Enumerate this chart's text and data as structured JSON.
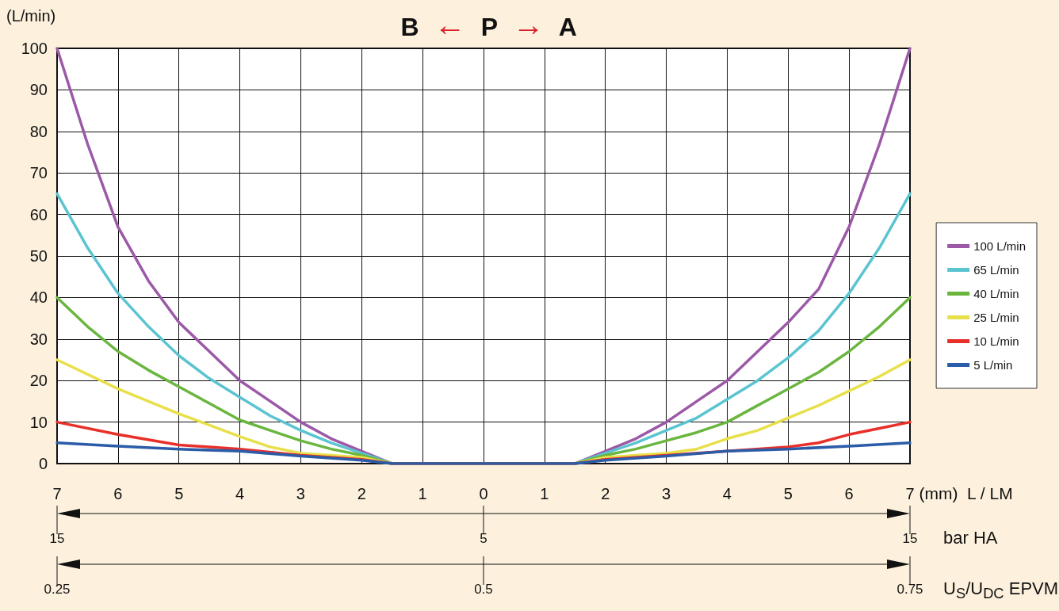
{
  "chart_data": {
    "type": "line",
    "title": "B ← P → A",
    "xlabel": "(mm)  L / LM",
    "ylabel": "(L/min)",
    "xlim": [
      -7,
      7
    ],
    "xticks": [
      {
        "value": -7,
        "label": "7"
      },
      {
        "value": -6,
        "label": "6"
      },
      {
        "value": -5,
        "label": "5"
      },
      {
        "value": -4,
        "label": "4"
      },
      {
        "value": -3,
        "label": "3"
      },
      {
        "value": -2,
        "label": "2"
      },
      {
        "value": -1,
        "label": "1"
      },
      0,
      1,
      2,
      3,
      4,
      5,
      6,
      7
    ],
    "ylim": [
      0,
      100
    ],
    "yticks": [
      0,
      10,
      20,
      30,
      40,
      50,
      60,
      70,
      80,
      90,
      100
    ],
    "grid": true,
    "legend": "right",
    "marker": "none",
    "line_style": "solid",
    "series": [
      {
        "name": "100 L/min",
        "color": "#9b59a8",
        "x": [
          -7,
          -6.5,
          -6,
          -5.5,
          -5,
          -4.5,
          -4,
          -3.5,
          -3,
          -2.5,
          -2,
          -1.5,
          1.5,
          2,
          2.5,
          3,
          3.5,
          4,
          4.5,
          5,
          5.5,
          6,
          6.5,
          7
        ],
        "values": [
          100,
          77,
          57,
          44,
          34,
          27,
          20,
          15,
          10,
          6,
          3,
          0,
          0,
          3,
          6,
          10,
          15,
          20,
          27,
          34,
          42,
          57,
          77,
          100
        ]
      },
      {
        "name": "65 L/min",
        "color": "#5bc4d1",
        "x": [
          -7,
          -6.5,
          -6,
          -5.5,
          -5,
          -4.5,
          -4,
          -3.5,
          -3,
          -2.5,
          -2,
          -1.5,
          1.5,
          2,
          2.5,
          3,
          3.5,
          4,
          4.5,
          5,
          5.5,
          6,
          6.5,
          7
        ],
        "values": [
          65,
          52,
          41,
          33,
          26,
          20.5,
          16,
          11.5,
          8,
          5,
          2.5,
          0,
          0,
          2.5,
          5,
          8,
          11,
          15.5,
          20,
          25.5,
          32,
          41,
          52,
          65
        ]
      },
      {
        "name": "40 L/min",
        "color": "#6ab63f",
        "x": [
          -7,
          -6.5,
          -6,
          -5.5,
          -5,
          -4.5,
          -4,
          -3.5,
          -3,
          -2.5,
          -2,
          -1.5,
          1.5,
          2,
          2.5,
          3,
          3.5,
          4,
          4.5,
          5,
          5.5,
          6,
          6.5,
          7
        ],
        "values": [
          40,
          33,
          27,
          22.5,
          18.5,
          14.5,
          10.5,
          8,
          5.5,
          3.5,
          2,
          0,
          0,
          2,
          3.5,
          5.5,
          7.5,
          10,
          14,
          18,
          22,
          27,
          33,
          40
        ]
      },
      {
        "name": "25 L/min",
        "color": "#e8e04a",
        "x": [
          -7,
          -6,
          -5,
          -4,
          -3.5,
          -3,
          -2.5,
          -2,
          -1.5,
          1.5,
          2,
          2.5,
          3,
          3.5,
          4,
          4.5,
          5,
          5.5,
          6,
          6.5,
          7
        ],
        "values": [
          25,
          18,
          12,
          6.5,
          4,
          2.5,
          2,
          1.5,
          0,
          0,
          1.5,
          2,
          2.5,
          3.5,
          6,
          8,
          11,
          14,
          17.5,
          21,
          25
        ]
      },
      {
        "name": "10 L/min",
        "color": "#e8302a",
        "x": [
          -7,
          -6,
          -5,
          -4,
          -3,
          -2,
          -1.5,
          1.5,
          2,
          3,
          4,
          5,
          5.5,
          6,
          6.5,
          7
        ],
        "values": [
          10,
          7,
          4.5,
          3.5,
          2,
          1,
          0,
          0,
          1,
          2,
          3,
          4,
          5,
          7,
          8.5,
          10
        ]
      },
      {
        "name": "5 L/min",
        "color": "#2b5ca8",
        "x": [
          -7,
          -6,
          -5,
          -4,
          -3,
          -2,
          -1.5,
          1.5,
          2,
          3,
          4,
          5,
          6,
          7
        ],
        "values": [
          5,
          4.2,
          3.5,
          3,
          1.8,
          0.8,
          0,
          0,
          0.8,
          1.8,
          3,
          3.5,
          4.2,
          5
        ]
      }
    ],
    "annotations": [
      "15",
      "5",
      "15",
      "bar  HA",
      "0.25",
      "0.5",
      "0.75",
      "U$_{S}$/U$_{DC}$  EPVM"
    ]
  }
}
